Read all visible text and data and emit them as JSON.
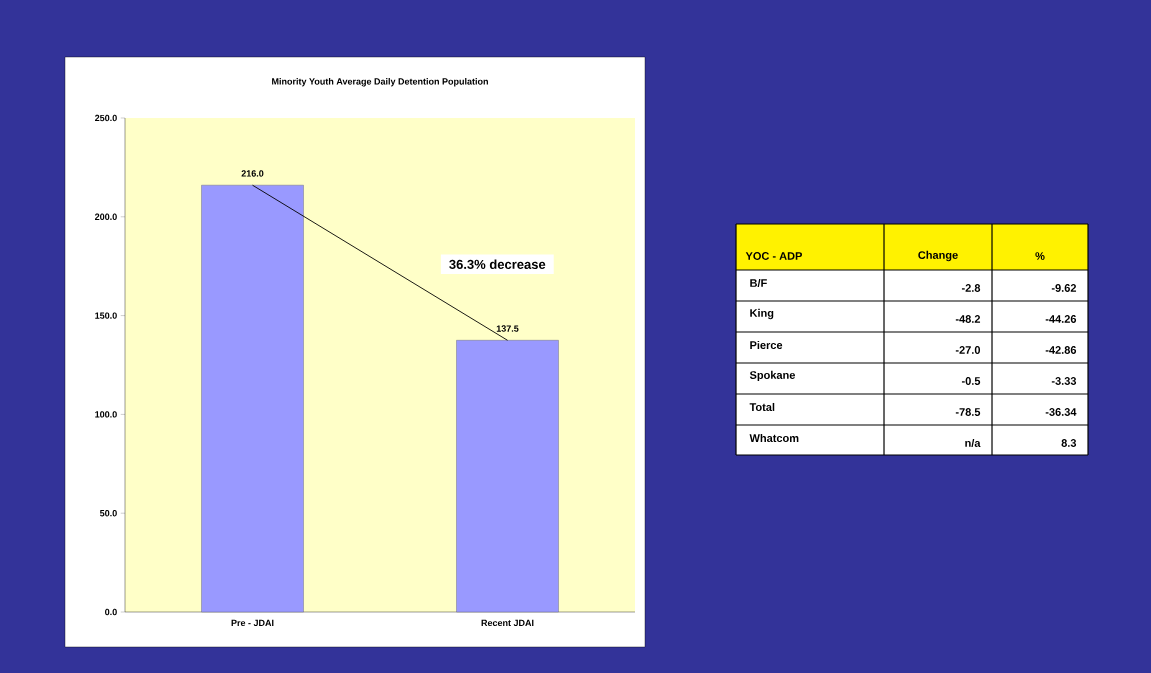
{
  "chart_data": [
    {
      "type": "bar",
      "title": "Minority Youth Average Daily Detention Population",
      "categories": [
        "Pre - JDAI",
        "Recent JDAI"
      ],
      "series": [
        {
          "type": "bar",
          "color": "#9999ff",
          "values": [
            216.0,
            137.5
          ],
          "value_labels": [
            "216.0",
            "137.5"
          ]
        },
        {
          "type": "line",
          "color": "#000000",
          "values": [
            216.0,
            137.5
          ]
        }
      ],
      "ylim": [
        0,
        250
      ],
      "yticks": [
        {
          "value": 0,
          "label": "0.0"
        },
        {
          "value": 50,
          "label": "50.0"
        },
        {
          "value": 100,
          "label": "100.0"
        },
        {
          "value": 150,
          "label": "150.0"
        },
        {
          "value": 200,
          "label": "200.0"
        },
        {
          "value": 250,
          "label": "250.0"
        }
      ],
      "annotations": [
        "36.3% decrease"
      ]
    },
    {
      "type": "other",
      "title": "YOC - ADP",
      "categories": [
        "B/F",
        "King",
        "Pierce",
        "Spokane",
        "Total",
        "Whatcom"
      ],
      "series": [
        {
          "name": "Change",
          "values": [
            -2.8,
            -48.2,
            -27.0,
            -0.5,
            -78.5,
            null
          ],
          "value_labels": [
            "-2.8",
            "-48.2",
            "-27.0",
            "-0.5",
            "-78.5",
            "n/a"
          ]
        },
        {
          "name": "%",
          "values": [
            -9.62,
            -44.26,
            -42.86,
            -3.33,
            -36.34,
            8.3
          ],
          "value_labels": [
            "-9.62",
            "-44.26",
            "-42.86",
            "-3.33",
            "-36.34",
            "8.3"
          ]
        }
      ]
    }
  ]
}
